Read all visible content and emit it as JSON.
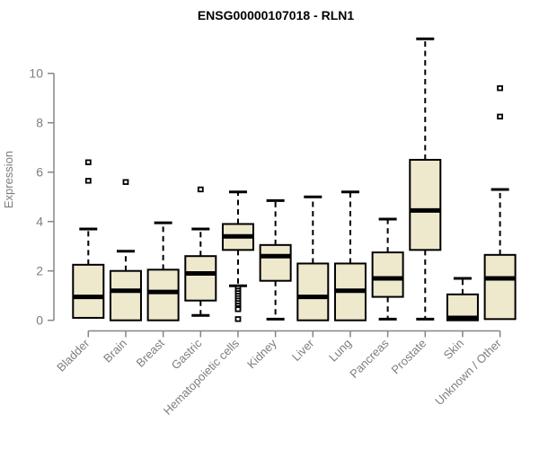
{
  "chart_data": {
    "type": "box",
    "title": "ENSG00000107018 - RLN1",
    "xlabel": "",
    "ylabel": "Expression",
    "ylim": [
      0,
      11.5
    ],
    "yticks": [
      0,
      2,
      4,
      6,
      8,
      10
    ],
    "grid": false,
    "legend": "none",
    "categories": [
      "Bladder",
      "Brain",
      "Breast",
      "Gastric",
      "Hematopoietic cells",
      "Kidney",
      "Liver",
      "Lung",
      "Pancreas",
      "Prostate",
      "Skin",
      "Unknown / Other"
    ],
    "boxes": [
      {
        "category": "Bladder",
        "whisker_low": 0.1,
        "q1": 0.1,
        "median": 0.95,
        "q3": 2.25,
        "whisker_high": 3.7,
        "outliers": [
          5.65,
          6.4
        ]
      },
      {
        "category": "Brain",
        "whisker_low": 0.0,
        "q1": 0.0,
        "median": 1.2,
        "q3": 2.0,
        "whisker_high": 2.8,
        "outliers": [
          5.6
        ]
      },
      {
        "category": "Breast",
        "whisker_low": 0.0,
        "q1": 0.0,
        "median": 1.15,
        "q3": 2.05,
        "whisker_high": 3.95,
        "outliers": []
      },
      {
        "category": "Gastric",
        "whisker_low": 0.2,
        "q1": 0.8,
        "median": 1.9,
        "q3": 2.6,
        "whisker_high": 3.7,
        "outliers": [
          5.3
        ]
      },
      {
        "category": "Hematopoietic cells",
        "whisker_low": 1.4,
        "q1": 2.85,
        "median": 3.4,
        "q3": 3.9,
        "whisker_high": 5.2,
        "outliers": [
          1.3,
          1.2,
          1.1,
          1.0,
          0.9,
          0.8,
          0.7,
          0.6,
          0.5,
          0.45,
          0.05
        ]
      },
      {
        "category": "Kidney",
        "whisker_low": 0.05,
        "q1": 1.6,
        "median": 2.6,
        "q3": 3.05,
        "whisker_high": 4.85,
        "outliers": []
      },
      {
        "category": "Liver",
        "whisker_low": 0.0,
        "q1": 0.0,
        "median": 0.95,
        "q3": 2.3,
        "whisker_high": 5.0,
        "outliers": []
      },
      {
        "category": "Lung",
        "whisker_low": 0.0,
        "q1": 0.0,
        "median": 1.2,
        "q3": 2.3,
        "whisker_high": 5.2,
        "outliers": []
      },
      {
        "category": "Pancreas",
        "whisker_low": 0.05,
        "q1": 0.95,
        "median": 1.7,
        "q3": 2.75,
        "whisker_high": 4.1,
        "outliers": []
      },
      {
        "category": "Prostate",
        "whisker_low": 0.05,
        "q1": 2.85,
        "median": 4.45,
        "q3": 6.5,
        "whisker_high": 11.4,
        "outliers": []
      },
      {
        "category": "Skin",
        "whisker_low": 0.0,
        "q1": 0.0,
        "median": 0.1,
        "q3": 1.05,
        "whisker_high": 1.7,
        "outliers": []
      },
      {
        "category": "Unknown / Other",
        "whisker_low": 0.05,
        "q1": 0.05,
        "median": 1.7,
        "q3": 2.65,
        "whisker_high": 5.3,
        "outliers": [
          8.25,
          9.4
        ]
      }
    ],
    "colors": {
      "box_fill": "#EEE8CD",
      "box_stroke": "#000000",
      "median": "#000000",
      "whisker": "#000000",
      "outlier_stroke": "#000000",
      "outlier_fill": "#FFFFFF",
      "axis": "#858585",
      "axis_text": "#7E7E7E",
      "title": "#000000",
      "background": "#FFFFFF"
    }
  }
}
